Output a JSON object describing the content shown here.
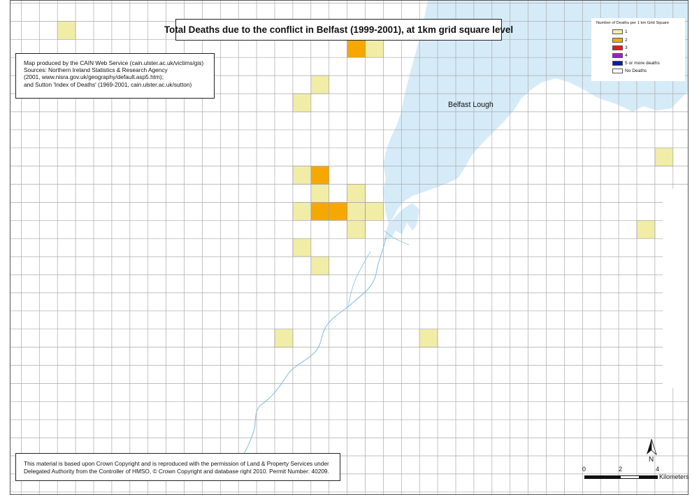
{
  "title": "Total Deaths due to the conflict in Belfast (1999-2001), at 1km grid square level",
  "credits": [
    "Map produced by the CAIN Web Service (cain.ulster.ac.uk/victims/gis)",
    "Sources: Northern Ireland Statistics & Research Agency",
    "(2001, www.nisra.gov.uk/geography/default.asp5.htm);",
    "and Sutton 'Index of Deaths' (1969-2001, cain.ulster.ac.uk/sutton)"
  ],
  "copyright": [
    "This material is based upon Crown Copyright and is reproduced with the permission of Land & Property Services under",
    "Delegated Authority from the Controller of HMSO, © Crown Copyright and database right 2010. Permit Number: 40209."
  ],
  "legend": {
    "title": "Number of Deaths per 1 km Grid Square",
    "items": [
      {
        "label": "1",
        "color": "#f2eda6"
      },
      {
        "label": "2",
        "color": "#f7a800"
      },
      {
        "label": "3",
        "color": "#e8141e"
      },
      {
        "label": "4",
        "color": "#9c1fd0"
      },
      {
        "label": "5 or more deaths",
        "color": "#0a1da0"
      },
      {
        "label": "No Deaths",
        "color": "#ffffff"
      }
    ]
  },
  "water_label": "Belfast Lough",
  "north_label": "N",
  "scale": {
    "ticks": [
      "0",
      "2",
      "4"
    ],
    "unit": "Kilometers"
  },
  "colors": {
    "water": "#d6ebf8",
    "river": "#8fc6ea",
    "grid_line": "#aaaaaa"
  },
  "death_cells": [
    {
      "col": 3,
      "row": 1,
      "deaths": 1
    },
    {
      "col": 19,
      "row": 2,
      "deaths": 2
    },
    {
      "col": 20,
      "row": 2,
      "deaths": 1
    },
    {
      "col": 17,
      "row": 4,
      "deaths": 1
    },
    {
      "col": 16,
      "row": 5,
      "deaths": 1
    },
    {
      "col": 36,
      "row": 8,
      "deaths": 1
    },
    {
      "col": 16,
      "row": 9,
      "deaths": 1
    },
    {
      "col": 17,
      "row": 9,
      "deaths": 2
    },
    {
      "col": 17,
      "row": 10,
      "deaths": 1
    },
    {
      "col": 19,
      "row": 10,
      "deaths": 1
    },
    {
      "col": 16,
      "row": 11,
      "deaths": 1
    },
    {
      "col": 17,
      "row": 11,
      "deaths": 2
    },
    {
      "col": 18,
      "row": 11,
      "deaths": 2
    },
    {
      "col": 19,
      "row": 11,
      "deaths": 1
    },
    {
      "col": 20,
      "row": 11,
      "deaths": 1
    },
    {
      "col": 19,
      "row": 12,
      "deaths": 1
    },
    {
      "col": 35,
      "row": 12,
      "deaths": 1
    },
    {
      "col": 16,
      "row": 13,
      "deaths": 1
    },
    {
      "col": 17,
      "row": 14,
      "deaths": 1
    },
    {
      "col": 15,
      "row": 18,
      "deaths": 1
    },
    {
      "col": 23,
      "row": 18,
      "deaths": 1
    }
  ]
}
